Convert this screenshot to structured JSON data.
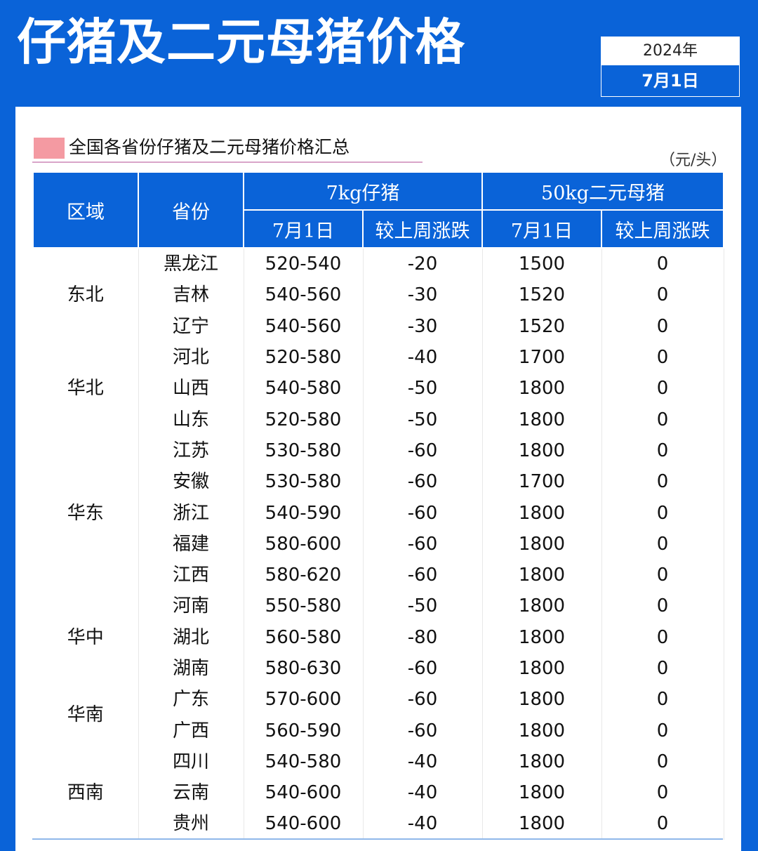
{
  "header": {
    "title": "仔猪及二元母猪价格",
    "year": "2024年",
    "date": "7月1日"
  },
  "section": {
    "title": "全国各省份仔猪及二元母猪价格汇总",
    "unit": "（元/头）"
  },
  "table": {
    "col_region": "区域",
    "col_province": "省份",
    "group_piglet": "7kg仔猪",
    "group_sow": "50kg二元母猪",
    "sub_date_1": "7月1日",
    "sub_change_1": "较上周涨跌",
    "sub_date_2": "7月1日",
    "sub_change_2": "较上周涨跌",
    "regions": [
      "东北",
      "华北",
      "华东",
      "华中",
      "华南",
      "西南"
    ],
    "rows": [
      {
        "province": "黑龙江",
        "piglet": "520-540",
        "piglet_change": "-20",
        "sow": "1500",
        "sow_change": "0"
      },
      {
        "province": "吉林",
        "piglet": "540-560",
        "piglet_change": "-30",
        "sow": "1520",
        "sow_change": "0"
      },
      {
        "province": "辽宁",
        "piglet": "540-560",
        "piglet_change": "-30",
        "sow": "1520",
        "sow_change": "0"
      },
      {
        "province": "河北",
        "piglet": "520-580",
        "piglet_change": "-40",
        "sow": "1700",
        "sow_change": "0"
      },
      {
        "province": "山西",
        "piglet": "540-580",
        "piglet_change": "-50",
        "sow": "1800",
        "sow_change": "0"
      },
      {
        "province": "山东",
        "piglet": "520-580",
        "piglet_change": "-50",
        "sow": "1800",
        "sow_change": "0"
      },
      {
        "province": "江苏",
        "piglet": "530-580",
        "piglet_change": "-60",
        "sow": "1800",
        "sow_change": "0"
      },
      {
        "province": "安徽",
        "piglet": "530-580",
        "piglet_change": "-60",
        "sow": "1700",
        "sow_change": "0"
      },
      {
        "province": "浙江",
        "piglet": "540-590",
        "piglet_change": "-60",
        "sow": "1800",
        "sow_change": "0"
      },
      {
        "province": "福建",
        "piglet": "580-600",
        "piglet_change": "-60",
        "sow": "1800",
        "sow_change": "0"
      },
      {
        "province": "江西",
        "piglet": "580-620",
        "piglet_change": "-60",
        "sow": "1800",
        "sow_change": "0"
      },
      {
        "province": "河南",
        "piglet": "550-580",
        "piglet_change": "-50",
        "sow": "1800",
        "sow_change": "0"
      },
      {
        "province": "湖北",
        "piglet": "560-580",
        "piglet_change": "-80",
        "sow": "1800",
        "sow_change": "0"
      },
      {
        "province": "湖南",
        "piglet": "580-630",
        "piglet_change": "-60",
        "sow": "1800",
        "sow_change": "0"
      },
      {
        "province": "广东",
        "piglet": "570-600",
        "piglet_change": "-60",
        "sow": "1800",
        "sow_change": "0"
      },
      {
        "province": "广西",
        "piglet": "560-590",
        "piglet_change": "-60",
        "sow": "1800",
        "sow_change": "0"
      },
      {
        "province": "四川",
        "piglet": "540-580",
        "piglet_change": "-40",
        "sow": "1800",
        "sow_change": "0"
      },
      {
        "province": "云南",
        "piglet": "540-600",
        "piglet_change": "-40",
        "sow": "1800",
        "sow_change": "0"
      },
      {
        "province": "贵州",
        "piglet": "540-600",
        "piglet_change": "-40",
        "sow": "1800",
        "sow_change": "0"
      }
    ]
  },
  "colors": {
    "brand_blue": "#0a63d8",
    "change_teal": "#1ab5a3",
    "section_marker_pink": "#f49aa2"
  }
}
